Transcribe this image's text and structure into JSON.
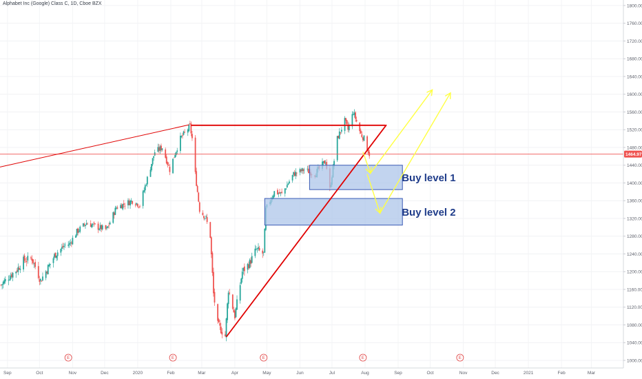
{
  "header": {
    "title": "Alphabet Inc (Google) Class C, 1D, Cboe BZX"
  },
  "colors": {
    "up": "#26a69a",
    "down": "#ef5350",
    "trend": "#e00000",
    "forecast": "#ffff44",
    "zone_fill": "#aec6ea",
    "zone_border": "#3b5bb5",
    "label": "#1f3c8a",
    "price_tag": "#ef5350"
  },
  "chart_data": {
    "type": "candlestick",
    "title": "Alphabet Inc (Google) Class C, 1D, Cboe BZX",
    "ylim": [
      1000,
      1800
    ],
    "y_ticks": [
      1000,
      1040,
      1080,
      1120,
      1160,
      1200,
      1240,
      1280,
      1320,
      1360,
      1400,
      1440,
      1480,
      1520,
      1560,
      1600,
      1640,
      1680,
      1720,
      1760,
      1800
    ],
    "x_range": [
      "2019-08-25",
      "2021-03-31"
    ],
    "x_ticks": [
      {
        "label": "Sep",
        "date": "2019-09-01"
      },
      {
        "label": "Oct",
        "date": "2019-10-01"
      },
      {
        "label": "Nov",
        "date": "2019-11-01"
      },
      {
        "label": "Dec",
        "date": "2019-12-01"
      },
      {
        "label": "2020",
        "date": "2020-01-01"
      },
      {
        "label": "Feb",
        "date": "2020-02-01"
      },
      {
        "label": "Mar",
        "date": "2020-03-01"
      },
      {
        "label": "Apr",
        "date": "2020-04-01"
      },
      {
        "label": "May",
        "date": "2020-05-01"
      },
      {
        "label": "Jun",
        "date": "2020-06-01"
      },
      {
        "label": "Jul",
        "date": "2020-07-01"
      },
      {
        "label": "Aug",
        "date": "2020-08-01"
      },
      {
        "label": "Sep",
        "date": "2020-09-01"
      },
      {
        "label": "Oct",
        "date": "2020-10-01"
      },
      {
        "label": "Nov",
        "date": "2020-11-01"
      },
      {
        "label": "Dec",
        "date": "2020-12-01"
      },
      {
        "label": "2021",
        "date": "2021-01-01"
      },
      {
        "label": "Feb",
        "date": "2021-02-01"
      },
      {
        "label": "Mar",
        "date": "2021-03-01"
      }
    ],
    "last_price": "1464.97",
    "last_price_value": 1464.97,
    "earnings_marks": [
      {
        "label": "E",
        "date": "2019-10-28"
      },
      {
        "label": "E",
        "date": "2020-02-03"
      },
      {
        "label": "E",
        "date": "2020-04-28"
      },
      {
        "label": "E",
        "date": "2020-07-30"
      },
      {
        "label": "E",
        "date": "2020-10-29"
      }
    ],
    "close_path": [
      [
        "2019-08-26",
        1170
      ],
      [
        "2019-09-03",
        1190
      ],
      [
        "2019-09-10",
        1205
      ],
      [
        "2019-09-16",
        1225
      ],
      [
        "2019-09-24",
        1230
      ],
      [
        "2019-10-02",
        1180
      ],
      [
        "2019-10-08",
        1205
      ],
      [
        "2019-10-16",
        1240
      ],
      [
        "2019-10-25",
        1260
      ],
      [
        "2019-10-29",
        1262
      ],
      [
        "2019-11-05",
        1290
      ],
      [
        "2019-11-14",
        1310
      ],
      [
        "2019-11-25",
        1300
      ],
      [
        "2019-12-03",
        1295
      ],
      [
        "2019-12-12",
        1345
      ],
      [
        "2019-12-27",
        1360
      ],
      [
        "2020-01-03",
        1350
      ],
      [
        "2020-01-10",
        1410
      ],
      [
        "2020-01-17",
        1470
      ],
      [
        "2020-01-24",
        1480
      ],
      [
        "2020-01-31",
        1430
      ],
      [
        "2020-02-04",
        1460
      ],
      [
        "2020-02-10",
        1500
      ],
      [
        "2020-02-19",
        1528
      ],
      [
        "2020-02-21",
        1500
      ],
      [
        "2020-02-24",
        1420
      ],
      [
        "2020-02-28",
        1340
      ],
      [
        "2020-03-05",
        1320
      ],
      [
        "2020-03-09",
        1280
      ],
      [
        "2020-03-12",
        1150
      ],
      [
        "2020-03-16",
        1080
      ],
      [
        "2020-03-23",
        1055
      ],
      [
        "2020-03-26",
        1160
      ],
      [
        "2020-04-01",
        1100
      ],
      [
        "2020-04-08",
        1200
      ],
      [
        "2020-04-15",
        1220
      ],
      [
        "2020-04-21",
        1250
      ],
      [
        "2020-04-28",
        1240
      ],
      [
        "2020-04-30",
        1340
      ],
      [
        "2020-05-08",
        1380
      ],
      [
        "2020-05-15",
        1375
      ],
      [
        "2020-05-26",
        1420
      ],
      [
        "2020-06-05",
        1430
      ],
      [
        "2020-06-15",
        1420
      ],
      [
        "2020-06-25",
        1450
      ],
      [
        "2020-06-29",
        1385
      ],
      [
        "2020-07-06",
        1500
      ],
      [
        "2020-07-13",
        1540
      ],
      [
        "2020-07-16",
        1520
      ],
      [
        "2020-07-21",
        1560
      ],
      [
        "2020-07-28",
        1510
      ],
      [
        "2020-07-31",
        1500
      ],
      [
        "2020-08-05",
        1465
      ]
    ],
    "annotations": {
      "trend_lines": [
        {
          "from": [
            "2019-08-25",
            1436
          ],
          "to": [
            "2020-02-18",
            1531
          ]
        },
        {
          "from": [
            "2020-02-20",
            1530
          ],
          "to": [
            "2020-08-20",
            1530
          ]
        },
        {
          "from": [
            "2020-03-24",
            1053
          ],
          "to": [
            "2020-08-21",
            1531
          ]
        }
      ],
      "zones": [
        {
          "label": "Buy level 1",
          "from": "2020-06-10",
          "to": "2020-09-05",
          "top": 1440,
          "bottom": 1385
        },
        {
          "label": "Buy level 2",
          "from": "2020-04-29",
          "to": "2020-09-05",
          "top": 1365,
          "bottom": 1305
        }
      ],
      "forecast_arrows": [
        {
          "points": [
            [
              "2020-07-30",
              1470
            ],
            [
              "2020-08-06",
              1422
            ],
            [
              "2020-10-03",
              1610
            ]
          ]
        },
        {
          "points": [
            [
              "2020-08-03",
              1420
            ],
            [
              "2020-08-15",
              1332
            ],
            [
              "2020-10-20",
              1603
            ]
          ]
        }
      ]
    }
  }
}
